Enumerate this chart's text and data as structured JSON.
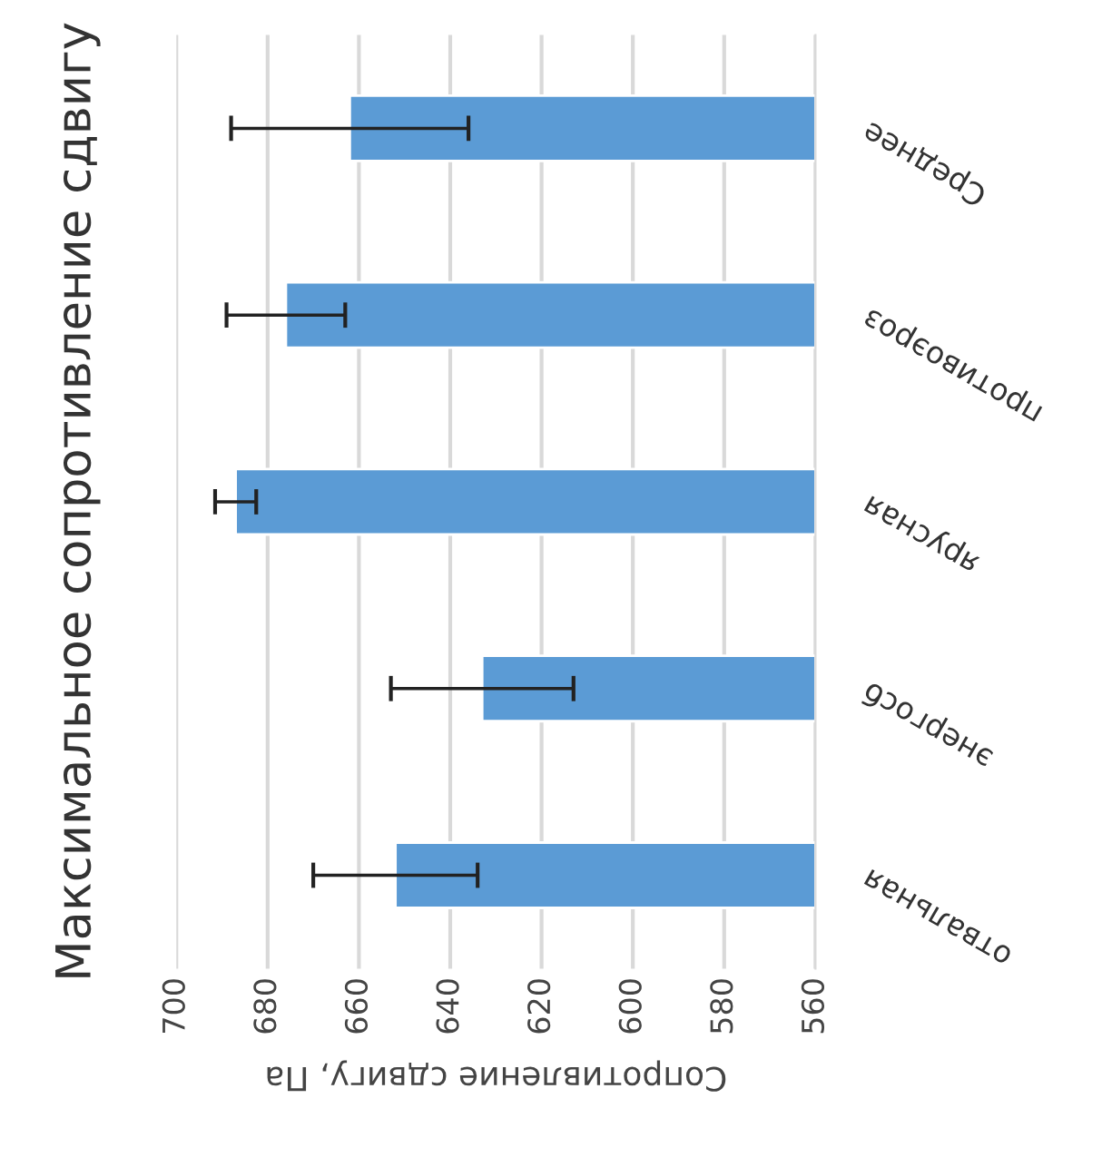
{
  "chart_data": {
    "type": "bar",
    "orientation": "horizontal",
    "title": "Максимальное сопротивление сдвигу",
    "xlabel": "Сопротивление сдвигу, Па",
    "categories": [
      "Среднее",
      "противоэроз",
      "ярусная",
      "энергосб",
      "отвальная"
    ],
    "values": [
      662,
      676,
      687,
      633,
      652
    ],
    "errors": [
      26,
      13,
      4.5,
      20,
      18
    ],
    "color": "#5b9bd5",
    "xlim": [
      700,
      560
    ],
    "xticks": [
      700,
      680,
      660,
      640,
      620,
      600,
      580,
      560
    ],
    "grid": "x"
  }
}
